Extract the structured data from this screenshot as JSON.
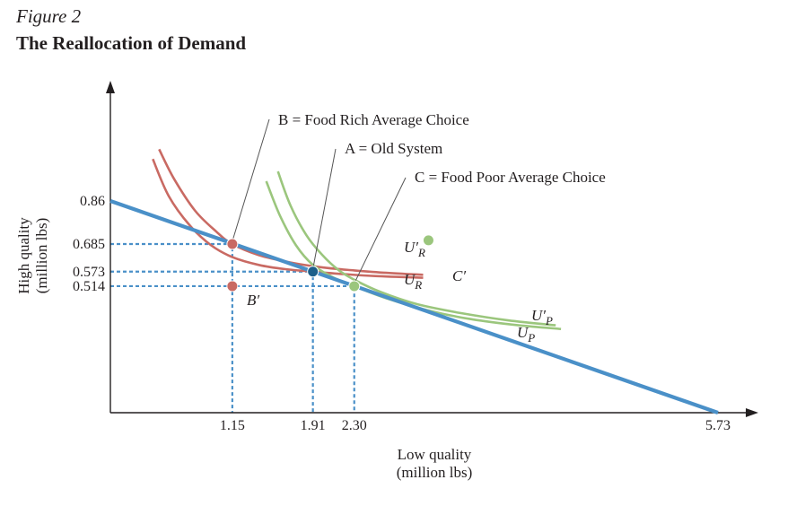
{
  "figure": {
    "label": "Figure 2",
    "title": "The Reallocation of Demand"
  },
  "chart_data": {
    "type": "line",
    "title": "The Reallocation of Demand",
    "xlabel": [
      "Low quality",
      "(million lbs)"
    ],
    "ylabel": [
      "High quality",
      "(million lbs)"
    ],
    "xlim": [
      0,
      5.73
    ],
    "ylim": [
      0,
      0.86
    ],
    "x_ticks": [
      "1.15",
      "1.91",
      "2.30",
      "5.73"
    ],
    "y_ticks": [
      "0.86",
      "0.685",
      "0.573",
      "0.514"
    ],
    "grid": false,
    "colors": {
      "budget": "#4a90c8",
      "rich": "#c96a63",
      "poor": "#9bc67d",
      "point_A": "#1c5f8a",
      "axis": "#231f20"
    },
    "budget_line": {
      "x": [
        0,
        5.73
      ],
      "y": [
        0.86,
        0
      ]
    },
    "points": [
      {
        "id": "B",
        "x": 1.15,
        "y": 0.685,
        "color": "#c96a63"
      },
      {
        "id": "A",
        "x": 1.91,
        "y": 0.573,
        "color": "#1c5f8a"
      },
      {
        "id": "C",
        "x": 2.3,
        "y": 0.514,
        "color": "#9bc67d"
      },
      {
        "id": "B'",
        "label": "B′",
        "x": 1.15,
        "y": 0.514,
        "color": "#c96a63"
      },
      {
        "id": "C'",
        "label": "C′",
        "x": 3.0,
        "y": 0.7,
        "color": "#9bc67d"
      }
    ],
    "indifference_curves": [
      {
        "name": "U′R",
        "main": "U",
        "prime": "′",
        "sub": "R",
        "color": "#c96a63",
        "x": [
          0.46,
          0.6,
          0.8,
          1.0,
          1.15,
          1.4,
          1.7,
          2.0,
          2.3,
          2.6,
          2.95
        ],
        "y": [
          1.07,
          0.95,
          0.82,
          0.735,
          0.685,
          0.64,
          0.61,
          0.59,
          0.578,
          0.568,
          0.56
        ]
      },
      {
        "name": "UR",
        "main": "U",
        "prime": "",
        "sub": "R",
        "color": "#c96a63",
        "x": [
          0.4,
          0.55,
          0.75,
          0.95,
          1.15,
          1.4,
          1.65,
          1.91,
          2.2,
          2.5,
          2.95
        ],
        "y": [
          1.03,
          0.88,
          0.76,
          0.68,
          0.632,
          0.6,
          0.583,
          0.573,
          0.563,
          0.555,
          0.548
        ]
      },
      {
        "name": "U′P",
        "main": "U",
        "prime": "′",
        "sub": "P",
        "color": "#9bc67d",
        "x": [
          1.58,
          1.7,
          1.85,
          2.0,
          2.15,
          2.3,
          2.55,
          2.9,
          3.3,
          3.75,
          4.2
        ],
        "y": [
          0.98,
          0.84,
          0.72,
          0.64,
          0.58,
          0.54,
          0.49,
          0.44,
          0.405,
          0.375,
          0.355
        ]
      },
      {
        "name": "UP",
        "main": "U",
        "prime": "",
        "sub": "P",
        "color": "#9bc67d",
        "x": [
          1.47,
          1.6,
          1.75,
          1.91,
          2.1,
          2.3,
          2.6,
          3.0,
          3.4,
          3.85,
          4.25
        ],
        "y": [
          0.94,
          0.8,
          0.68,
          0.6,
          0.55,
          0.514,
          0.465,
          0.415,
          0.38,
          0.355,
          0.34
        ]
      }
    ],
    "annotations": [
      {
        "text": "B = Food Rich Average Choice",
        "target": "B"
      },
      {
        "text": "A = Old System",
        "target": "A"
      },
      {
        "text": "C = Food Poor Average Choice",
        "target": "C"
      }
    ]
  }
}
